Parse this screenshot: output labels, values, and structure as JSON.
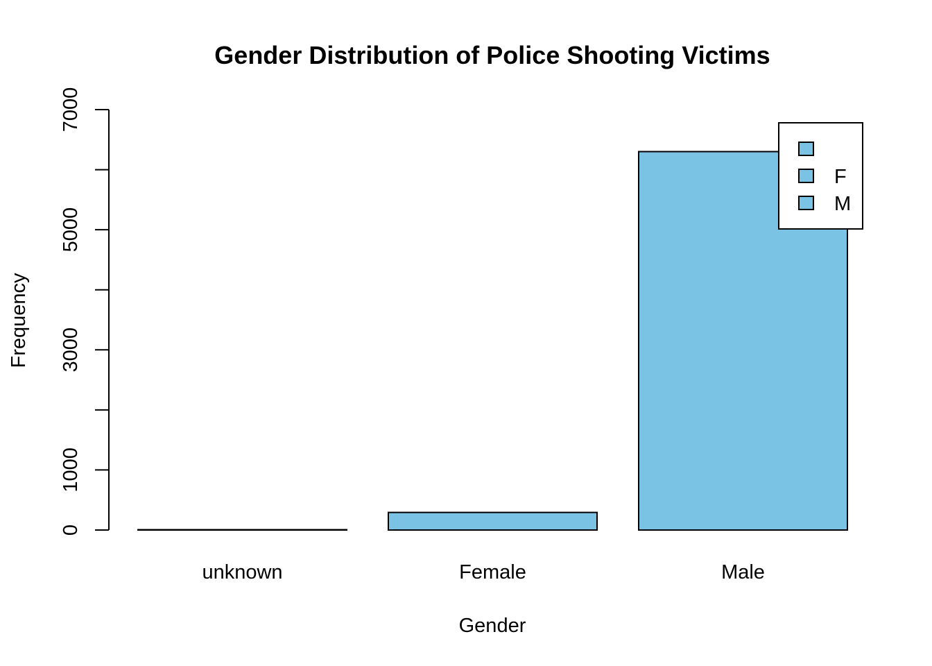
{
  "chart_data": {
    "type": "bar",
    "title": "Gender Distribution of Police Shooting Victims",
    "xlabel": "Gender",
    "ylabel": "Frequency",
    "categories": [
      "unknown",
      "Female",
      "Male"
    ],
    "values": [
      3,
      293,
      6301
    ],
    "ylim": [
      0,
      7000
    ],
    "yticks": [
      0,
      1000,
      2000,
      3000,
      4000,
      5000,
      6000,
      7000
    ],
    "ytick_labels": [
      "0",
      "1000",
      "",
      "3000",
      "",
      "5000",
      "",
      "7000"
    ],
    "bar_color": "#7AC3E5",
    "grid": false,
    "legend": {
      "position": "top-right",
      "entries": [
        "",
        "F",
        "M"
      ]
    }
  }
}
